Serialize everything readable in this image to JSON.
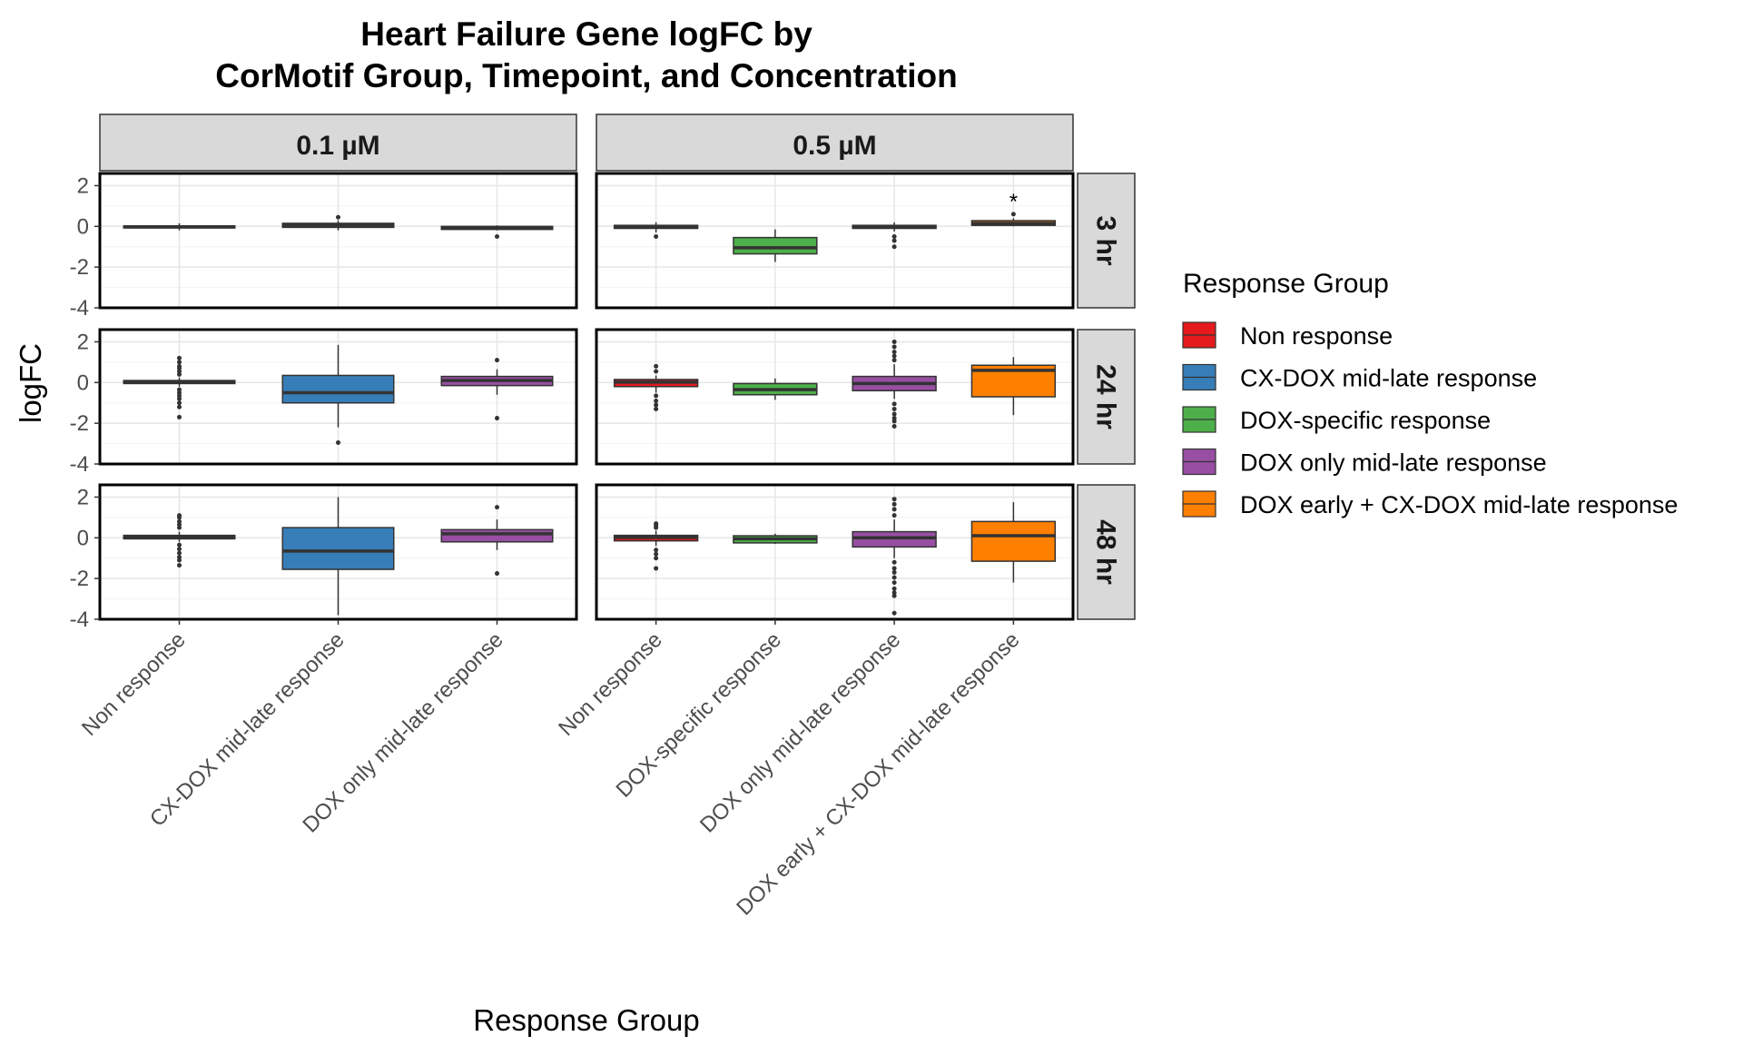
{
  "chart_data": {
    "type": "boxplot",
    "title_lines": [
      "Heart Failure Gene logFC by",
      "CorMotif Group, Timepoint, and Concentration"
    ],
    "xlabel": "Response Group",
    "ylabel": "logFC",
    "ylim": [
      -4,
      2.6
    ],
    "yticks": [
      -4,
      -2,
      0,
      2
    ],
    "grid": true,
    "legend_position": "right",
    "legend_title": "Response Group",
    "groups": [
      {
        "name": "Non response",
        "color": "#E41A1C"
      },
      {
        "name": "CX-DOX mid-late response",
        "color": "#377EB8"
      },
      {
        "name": "DOX-specific response",
        "color": "#4DAF4A"
      },
      {
        "name": "DOX only mid-late response",
        "color": "#984EA3"
      },
      {
        "name": "DOX early + CX-DOX mid-late response",
        "color": "#FF7F00"
      }
    ],
    "column_facets": [
      {
        "label": "0.1 µM",
        "categories": [
          "Non response",
          "CX-DOX mid-late response",
          "DOX only mid-late response"
        ]
      },
      {
        "label": "0.5 µM",
        "categories": [
          "Non response",
          "DOX-specific response",
          "DOX only mid-late response",
          "DOX early + CX-DOX mid-late response"
        ]
      }
    ],
    "row_facets": [
      "3 hr",
      "24 hr",
      "48 hr"
    ],
    "panels": [
      {
        "row": "3 hr",
        "col": "0.1 µM",
        "boxes": [
          {
            "group": "Non response",
            "q1": -0.08,
            "median": -0.02,
            "q3": 0.02,
            "lower": -0.2,
            "upper": 0.15,
            "outliers": []
          },
          {
            "group": "CX-DOX mid-late response",
            "q1": -0.05,
            "median": 0.05,
            "q3": 0.15,
            "lower": -0.2,
            "upper": 0.3,
            "outliers": [
              0.45
            ]
          },
          {
            "group": "DOX only mid-late response",
            "q1": -0.15,
            "median": -0.08,
            "q3": 0.0,
            "lower": -0.2,
            "upper": 0.05,
            "outliers": [
              -0.5
            ]
          }
        ]
      },
      {
        "row": "3 hr",
        "col": "0.5 µM",
        "boxes": [
          {
            "group": "Non response",
            "q1": -0.1,
            "median": -0.02,
            "q3": 0.05,
            "lower": -0.3,
            "upper": 0.2,
            "outliers": [
              -0.5
            ]
          },
          {
            "group": "DOX-specific response",
            "q1": -1.35,
            "median": -1.05,
            "q3": -0.55,
            "lower": -1.75,
            "upper": -0.15,
            "outliers": []
          },
          {
            "group": "DOX only mid-late response",
            "q1": -0.1,
            "median": -0.02,
            "q3": 0.05,
            "lower": -0.25,
            "upper": 0.2,
            "outliers": [
              -0.5,
              -0.7,
              -1.0
            ]
          },
          {
            "group": "DOX early + CX-DOX mid-late response",
            "q1": 0.05,
            "median": 0.15,
            "q3": 0.28,
            "lower": 0.0,
            "upper": 0.4,
            "outliers": [
              0.6
            ],
            "annotation": "*"
          }
        ]
      },
      {
        "row": "24 hr",
        "col": "0.1 µM",
        "boxes": [
          {
            "group": "Non response",
            "q1": -0.05,
            "median": 0.02,
            "q3": 0.1,
            "lower": -0.2,
            "upper": 0.25,
            "outliers": [
              0.4,
              0.55,
              0.7,
              0.8,
              1.0,
              1.2,
              -0.35,
              -0.5,
              -0.65,
              -0.8,
              -1.0,
              -1.2,
              -1.7
            ]
          },
          {
            "group": "CX-DOX mid-late response",
            "q1": -1.0,
            "median": -0.5,
            "q3": 0.35,
            "lower": -2.2,
            "upper": 1.85,
            "outliers": [
              -2.95
            ]
          },
          {
            "group": "DOX only mid-late response",
            "q1": -0.15,
            "median": 0.1,
            "q3": 0.3,
            "lower": -0.6,
            "upper": 0.65,
            "outliers": [
              1.1,
              -1.75
            ]
          }
        ]
      },
      {
        "row": "24 hr",
        "col": "0.5 µM",
        "boxes": [
          {
            "group": "Non response",
            "q1": -0.2,
            "median": 0.02,
            "q3": 0.15,
            "lower": -0.5,
            "upper": 0.35,
            "outliers": [
              0.55,
              0.8,
              -0.65,
              -0.9,
              -1.1,
              -1.3
            ]
          },
          {
            "group": "DOX-specific response",
            "q1": -0.6,
            "median": -0.35,
            "q3": -0.05,
            "lower": -0.85,
            "upper": 0.2,
            "outliers": []
          },
          {
            "group": "DOX only mid-late response",
            "q1": -0.4,
            "median": -0.05,
            "q3": 0.3,
            "lower": -0.8,
            "upper": 0.9,
            "outliers": [
              1.1,
              1.3,
              1.5,
              1.75,
              2.0,
              -1.05,
              -1.3,
              -1.55,
              -1.75,
              -1.9,
              -2.15
            ]
          },
          {
            "group": "DOX early + CX-DOX mid-late response",
            "q1": -0.7,
            "median": 0.6,
            "q3": 0.85,
            "lower": -1.6,
            "upper": 1.25,
            "outliers": []
          }
        ]
      },
      {
        "row": "48 hr",
        "col": "0.1 µM",
        "boxes": [
          {
            "group": "Non response",
            "q1": -0.05,
            "median": 0.03,
            "q3": 0.12,
            "lower": -0.2,
            "upper": 0.3,
            "outliers": [
              0.5,
              0.65,
              0.8,
              1.0,
              1.1,
              -0.35,
              -0.55,
              -0.75,
              -0.95,
              -1.1,
              -1.35
            ]
          },
          {
            "group": "CX-DOX mid-late response",
            "q1": -1.55,
            "median": -0.65,
            "q3": 0.5,
            "lower": -3.8,
            "upper": 2.0,
            "outliers": []
          },
          {
            "group": "DOX only mid-late response",
            "q1": -0.2,
            "median": 0.2,
            "q3": 0.4,
            "lower": -0.6,
            "upper": 0.9,
            "outliers": [
              1.5,
              -1.75
            ]
          }
        ]
      },
      {
        "row": "48 hr",
        "col": "0.5 µM",
        "boxes": [
          {
            "group": "Non response",
            "q1": -0.15,
            "median": 0.02,
            "q3": 0.12,
            "lower": -0.4,
            "upper": 0.35,
            "outliers": [
              0.5,
              0.6,
              0.7,
              -0.6,
              -0.8,
              -1.0,
              -1.5
            ]
          },
          {
            "group": "DOX-specific response",
            "q1": -0.25,
            "median": -0.05,
            "q3": 0.1,
            "lower": -0.3,
            "upper": 0.2,
            "outliers": []
          },
          {
            "group": "DOX only mid-late response",
            "q1": -0.45,
            "median": 0.0,
            "q3": 0.3,
            "lower": -1.0,
            "upper": 0.9,
            "outliers": [
              1.1,
              1.4,
              1.65,
              1.9,
              -1.2,
              -1.5,
              -1.7,
              -1.95,
              -2.2,
              -2.5,
              -2.7,
              -2.85,
              -3.7
            ]
          },
          {
            "group": "DOX early + CX-DOX mid-late response",
            "q1": -1.15,
            "median": 0.1,
            "q3": 0.8,
            "lower": -2.2,
            "upper": 1.75,
            "outliers": []
          }
        ]
      }
    ]
  }
}
